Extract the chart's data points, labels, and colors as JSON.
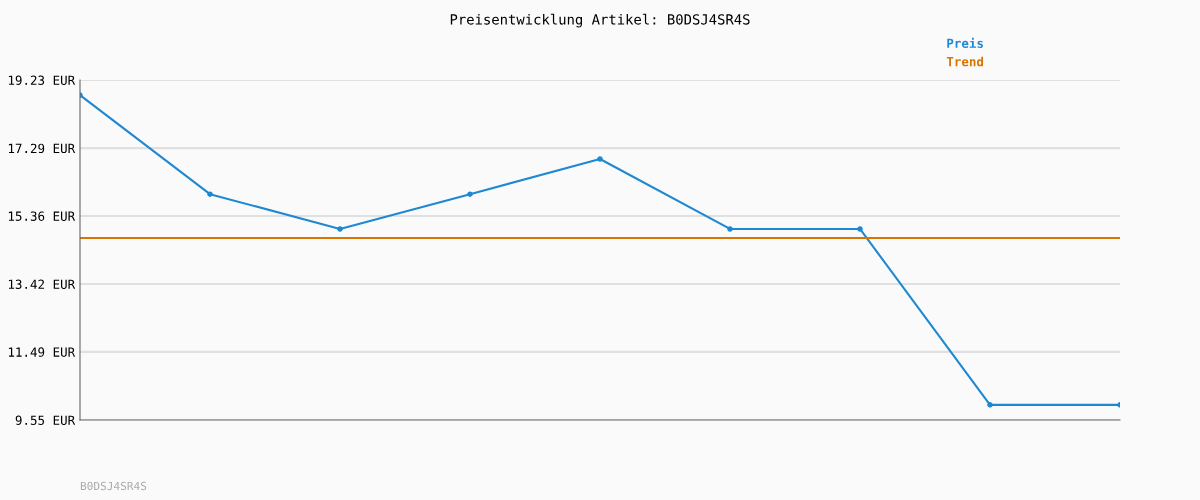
{
  "chart_data": {
    "type": "line",
    "title": "Preisentwicklung Artikel: B0DSJ4SR4S",
    "categories": [
      null,
      null,
      null,
      null,
      null,
      null,
      null,
      null,
      null
    ],
    "series": [
      {
        "name": "Preis",
        "color": "#1f88d2",
        "marker": "circle",
        "values": [
          18.8,
          15.98,
          14.99,
          15.98,
          16.98,
          14.99,
          14.99,
          9.98,
          9.98
        ]
      },
      {
        "name": "Trend",
        "color": "#d97400",
        "marker": "none",
        "values": [
          14.73,
          14.73,
          14.73,
          14.73,
          14.73,
          14.73,
          14.73,
          14.73,
          14.73
        ]
      }
    ],
    "ylim": [
      9.55,
      19.23
    ],
    "yticks": [
      {
        "value": 9.55,
        "label": "9.55 EUR"
      },
      {
        "value": 11.49,
        "label": "11.49 EUR"
      },
      {
        "value": 13.42,
        "label": "13.42 EUR"
      },
      {
        "value": 15.36,
        "label": "15.36 EUR"
      },
      {
        "value": 17.29,
        "label": "17.29 EUR"
      },
      {
        "value": 19.23,
        "label": "19.23 EUR"
      }
    ],
    "grid": "y",
    "legend": "top right",
    "line_style": "solid",
    "annotations": [
      "B0DSJ4SR4S"
    ]
  }
}
